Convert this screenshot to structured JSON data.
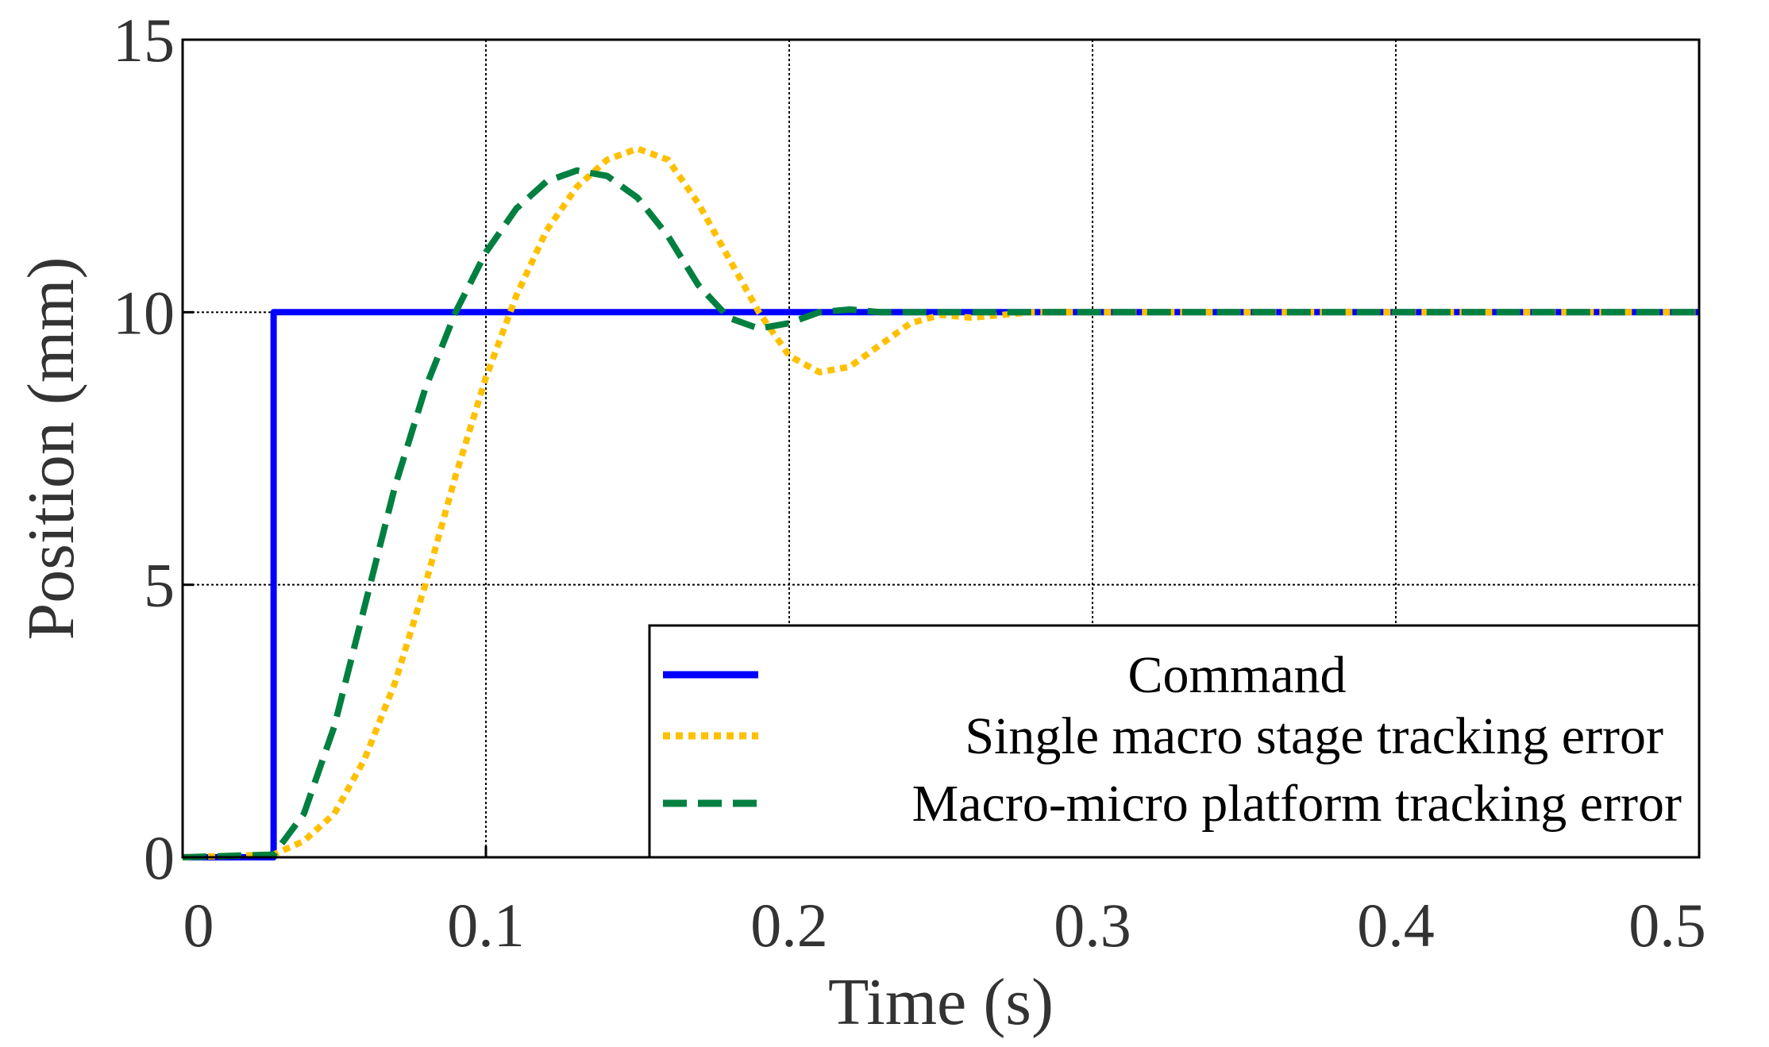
{
  "chart_data": {
    "type": "line",
    "title": "",
    "xlabel": "Time (s)",
    "ylabel": "Position (mm)",
    "xlim": [
      0,
      0.5
    ],
    "ylim": [
      0,
      15
    ],
    "xticks": [
      0,
      0.1,
      0.2,
      0.3,
      0.4,
      0.5
    ],
    "xtick_labels": [
      "0",
      "0.1",
      "0.2",
      "0.3",
      "0.4",
      "0.5"
    ],
    "yticks": [
      0,
      5,
      10,
      15
    ],
    "ytick_labels": [
      "0",
      "5",
      "10",
      "15"
    ],
    "grid": "dotted",
    "legend_position": "bottom-right",
    "series": [
      {
        "name": "Command",
        "color": "#0000ff",
        "style": "solid",
        "x": [
          0,
          0.03,
          0.03,
          0.5
        ],
        "y": [
          0,
          0,
          10,
          10
        ]
      },
      {
        "name": "Single macro stage tracking error",
        "color": "#ffc000",
        "style": "dotted",
        "x": [
          0,
          0.03,
          0.04,
          0.05,
          0.06,
          0.07,
          0.08,
          0.09,
          0.1,
          0.11,
          0.12,
          0.13,
          0.14,
          0.15,
          0.16,
          0.17,
          0.18,
          0.19,
          0.2,
          0.21,
          0.22,
          0.23,
          0.24,
          0.25,
          0.26,
          0.27,
          0.28,
          0.3,
          0.35,
          0.4,
          0.45,
          0.5
        ],
        "y": [
          0,
          0.05,
          0.3,
          0.8,
          1.8,
          3.2,
          5.0,
          7.0,
          8.8,
          10.3,
          11.5,
          12.3,
          12.8,
          13.0,
          12.8,
          12.0,
          11.0,
          10.0,
          9.2,
          8.9,
          9.0,
          9.4,
          9.8,
          9.95,
          9.9,
          9.95,
          10.0,
          10.0,
          10.0,
          10.0,
          10.0,
          10.0
        ]
      },
      {
        "name": "Macro-micro platform tracking error",
        "color": "#008040",
        "style": "dashed",
        "x": [
          0,
          0.03,
          0.04,
          0.05,
          0.06,
          0.07,
          0.08,
          0.09,
          0.1,
          0.11,
          0.12,
          0.13,
          0.14,
          0.15,
          0.16,
          0.17,
          0.18,
          0.19,
          0.2,
          0.21,
          0.22,
          0.23,
          0.24,
          0.26,
          0.3,
          0.5
        ],
        "y": [
          0,
          0.05,
          0.8,
          2.4,
          4.6,
          6.8,
          8.6,
          10.0,
          11.1,
          11.9,
          12.4,
          12.6,
          12.5,
          12.1,
          11.4,
          10.5,
          9.9,
          9.7,
          9.8,
          10.0,
          10.05,
          10.0,
          10.0,
          10.0,
          10.0,
          10.0
        ]
      }
    ]
  }
}
